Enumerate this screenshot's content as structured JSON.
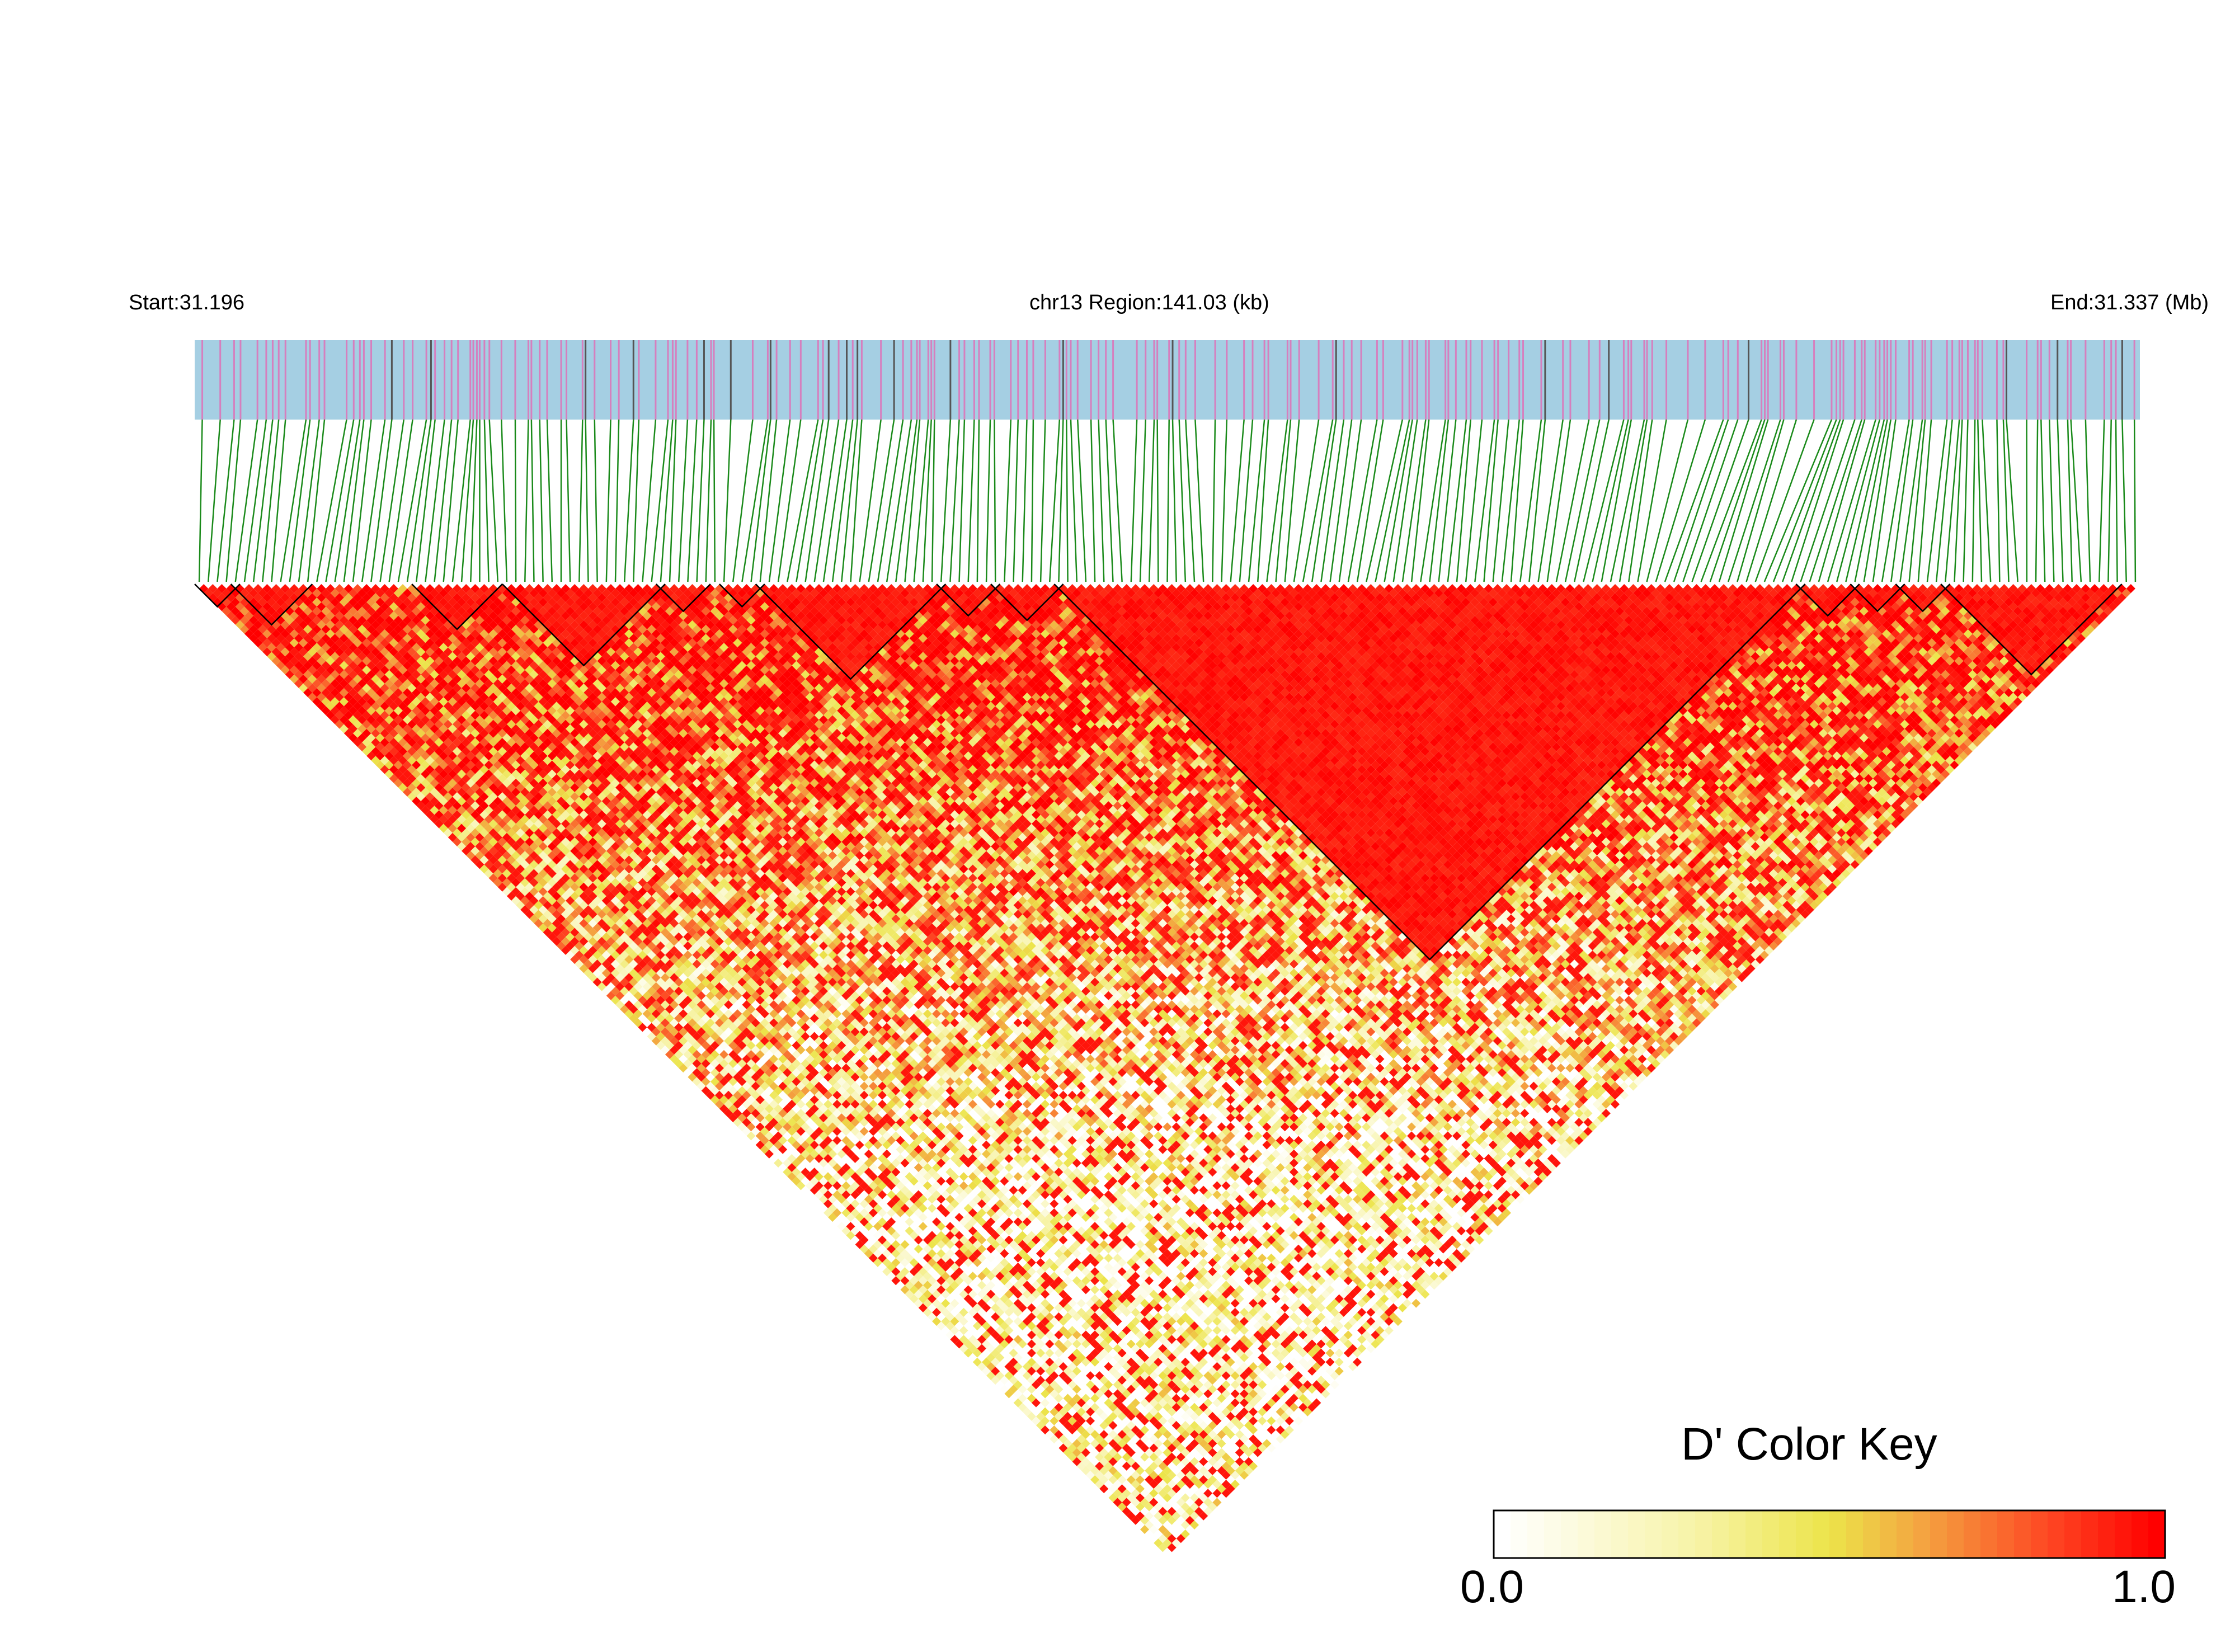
{
  "header": {
    "start_label": "Start:31.196",
    "region_label": "chr13 Region:141.03 (kb)",
    "end_label": "End:31.337 (Mb)"
  },
  "chart_data": {
    "type": "heatmap",
    "description_of_axes": "triangular pairwise LD heatmap over SNPs in region",
    "chromosome": "chr13",
    "region_start_mb": 31.196,
    "region_end_mb": 31.337,
    "region_length_kb": 141.03,
    "n_snps_approx": 215,
    "color_scale": {
      "label": "D' Color Key",
      "min": 0.0,
      "max": 1.0,
      "min_label": "0.0",
      "max_label": "1.0",
      "colors": [
        "#ffffff",
        "#f7f3a6",
        "#ece44a",
        "#f4a040",
        "#fe4020",
        "#ff0000"
      ]
    },
    "track_colors": {
      "band": "#a5cfe3",
      "snp_tick": "#d67fbe",
      "dark_tick": "#555555",
      "connector": "#1a8a1a"
    },
    "ld_blocks_snp_index_ranges": [
      [
        0,
        4
      ],
      [
        4,
        12
      ],
      [
        24,
        33
      ],
      [
        34,
        51
      ],
      [
        51,
        56
      ],
      [
        58,
        62
      ],
      [
        62,
        82
      ],
      [
        82,
        88
      ],
      [
        88,
        95
      ],
      [
        95,
        177
      ],
      [
        177,
        183
      ],
      [
        183,
        188
      ],
      [
        188,
        193
      ],
      [
        193,
        212
      ]
    ]
  },
  "color_key": {
    "title": "D' Color Key",
    "min_label": "0.0",
    "max_label": "1.0"
  }
}
